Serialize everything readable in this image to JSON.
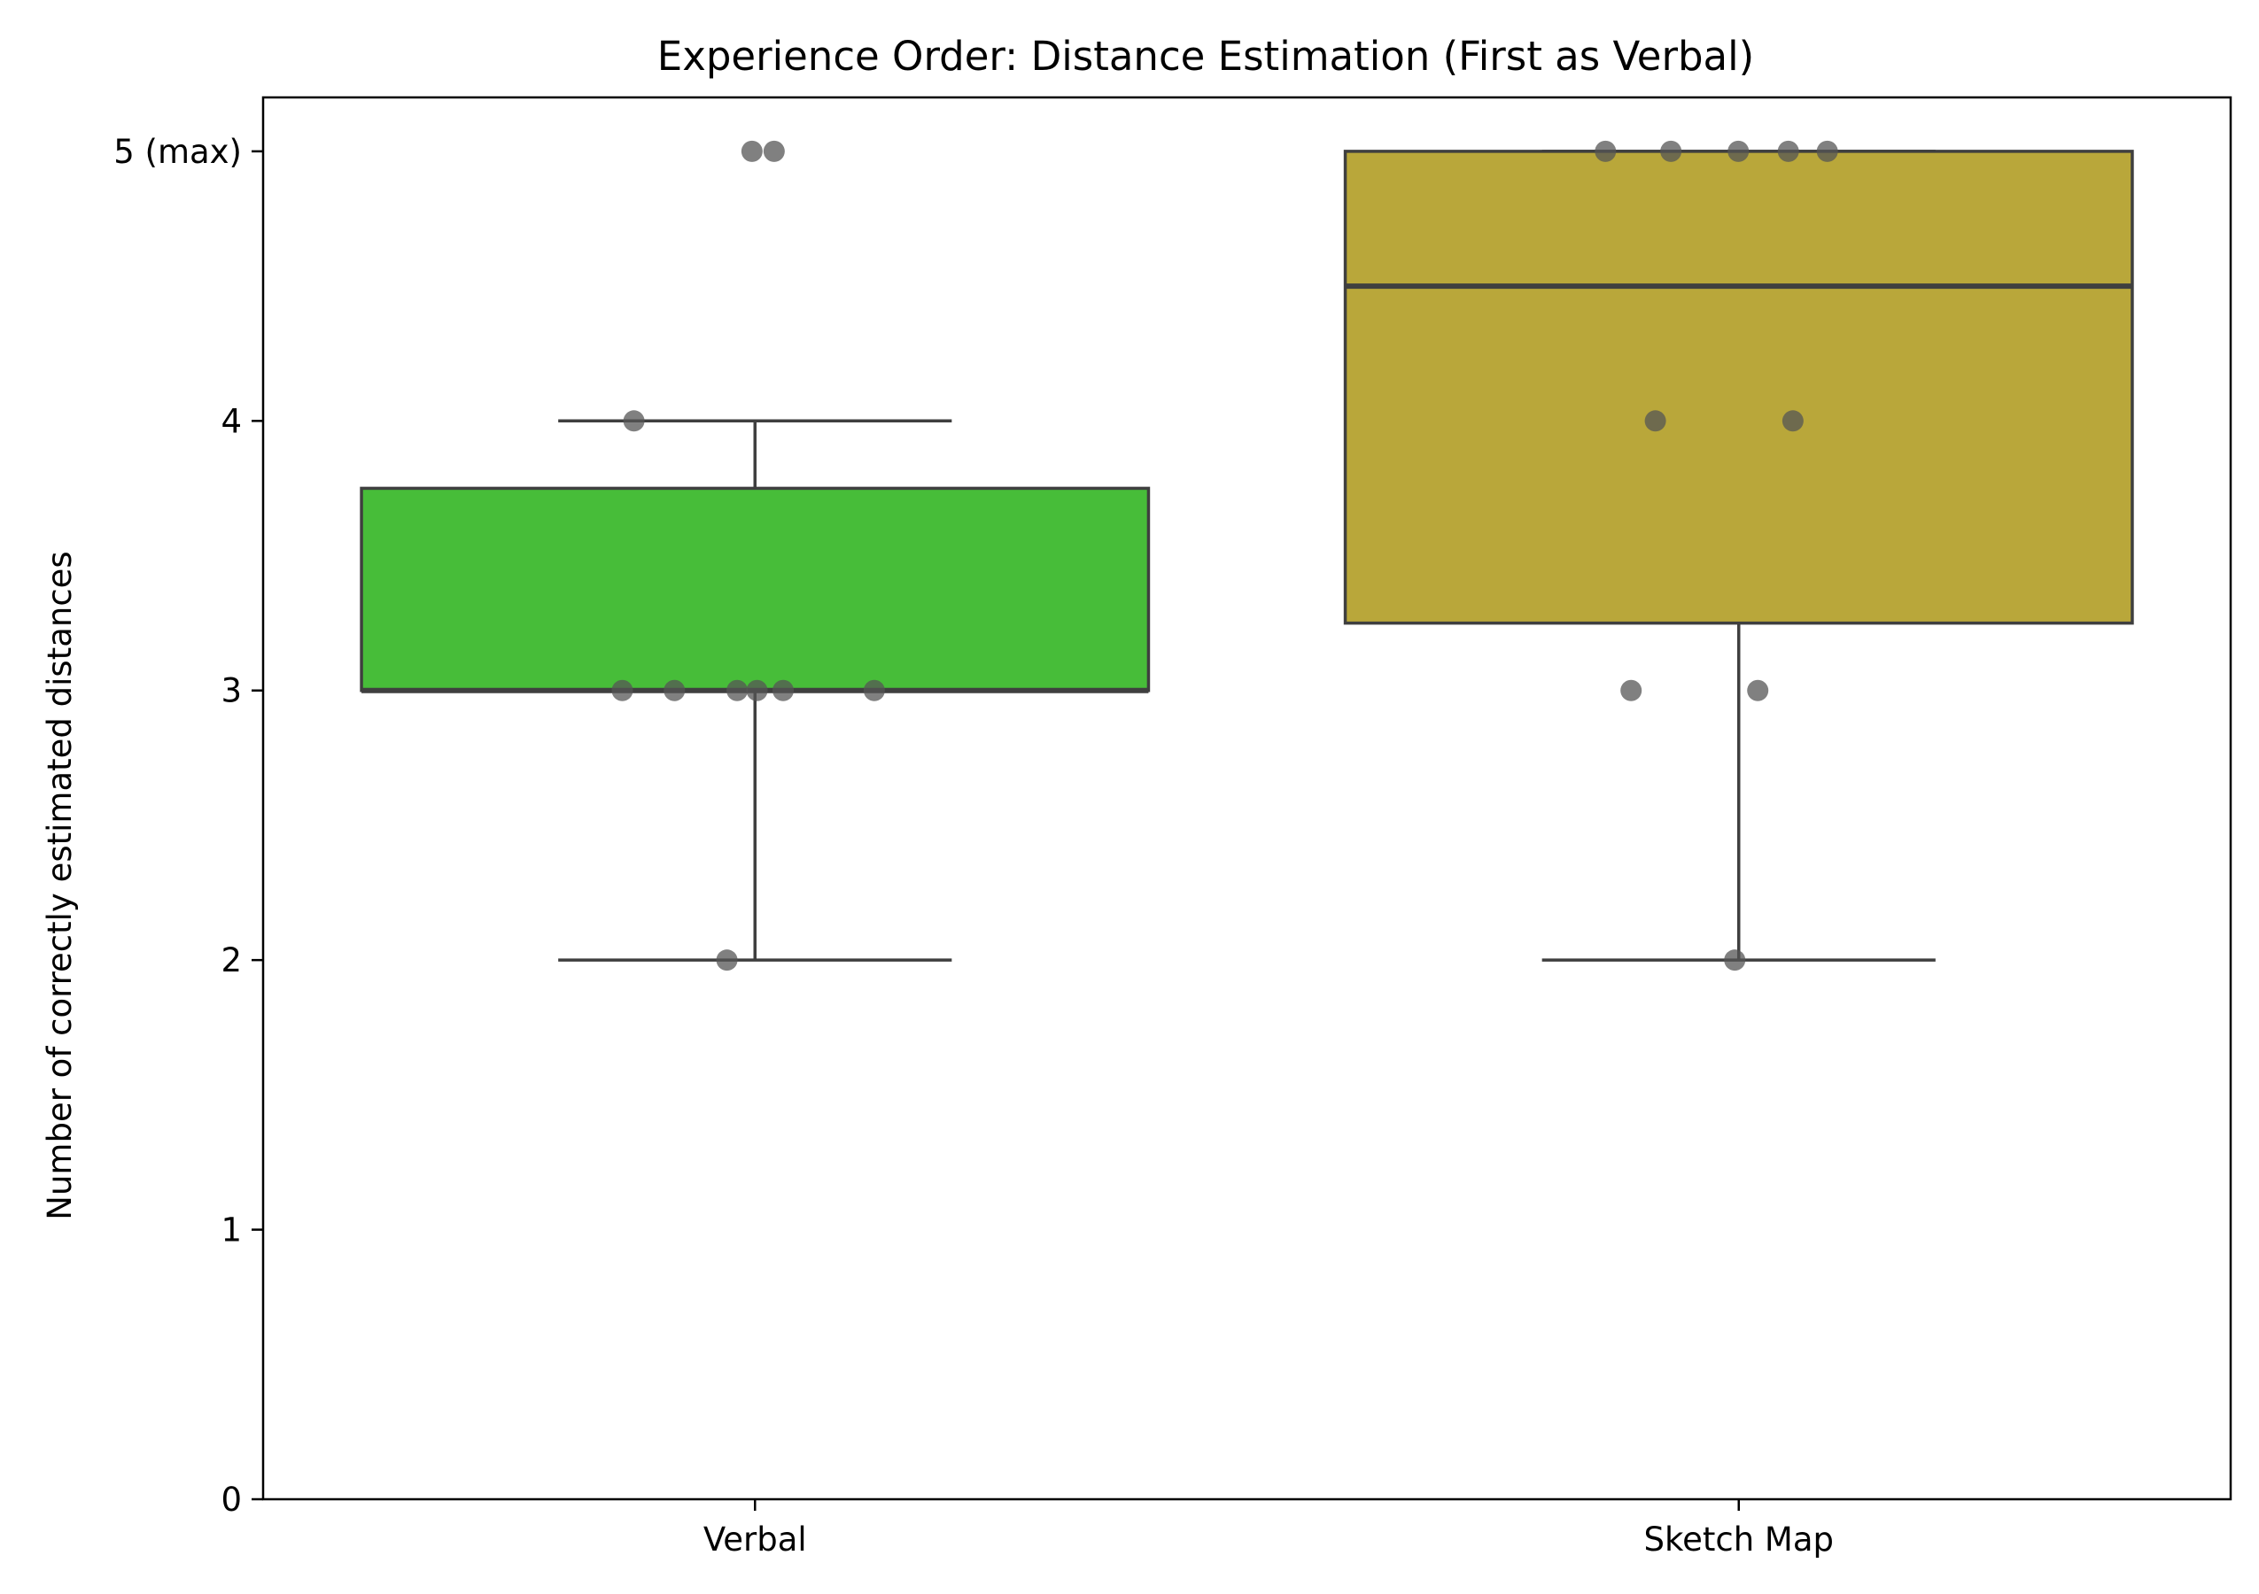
{
  "chart_data": {
    "type": "box",
    "title": "Experience Order: Distance Estimation (First as Verbal)",
    "xlabel": "",
    "ylabel": "Number of correctly estimated distances",
    "ylim": [
      0,
      5.2
    ],
    "y_ticks": [
      {
        "value": 0,
        "label": "0"
      },
      {
        "value": 1,
        "label": "1"
      },
      {
        "value": 2,
        "label": "2"
      },
      {
        "value": 3,
        "label": "3"
      },
      {
        "value": 4,
        "label": "4"
      },
      {
        "value": 5,
        "label": "5 (max)"
      }
    ],
    "categories": [
      "Verbal",
      "Sketch Map"
    ],
    "grid": false,
    "boxes": [
      {
        "category": "Verbal",
        "color": "#47bd39",
        "whisker_low": 2,
        "q1": 3,
        "median": 3,
        "q3": 3.75,
        "whisker_high": 4,
        "points": [
          5,
          5,
          4,
          3,
          3,
          3,
          3,
          3,
          3,
          2
        ]
      },
      {
        "category": "Sketch Map",
        "color": "#b9a73a",
        "whisker_low": 2,
        "q1": 3.25,
        "median": 4.5,
        "q3": 5,
        "whisker_high": 5,
        "points": [
          5,
          5,
          5,
          5,
          5,
          4,
          4,
          3,
          3,
          2
        ]
      }
    ],
    "point_color": "#555555",
    "box_edge_color": "#3f3f3f"
  }
}
